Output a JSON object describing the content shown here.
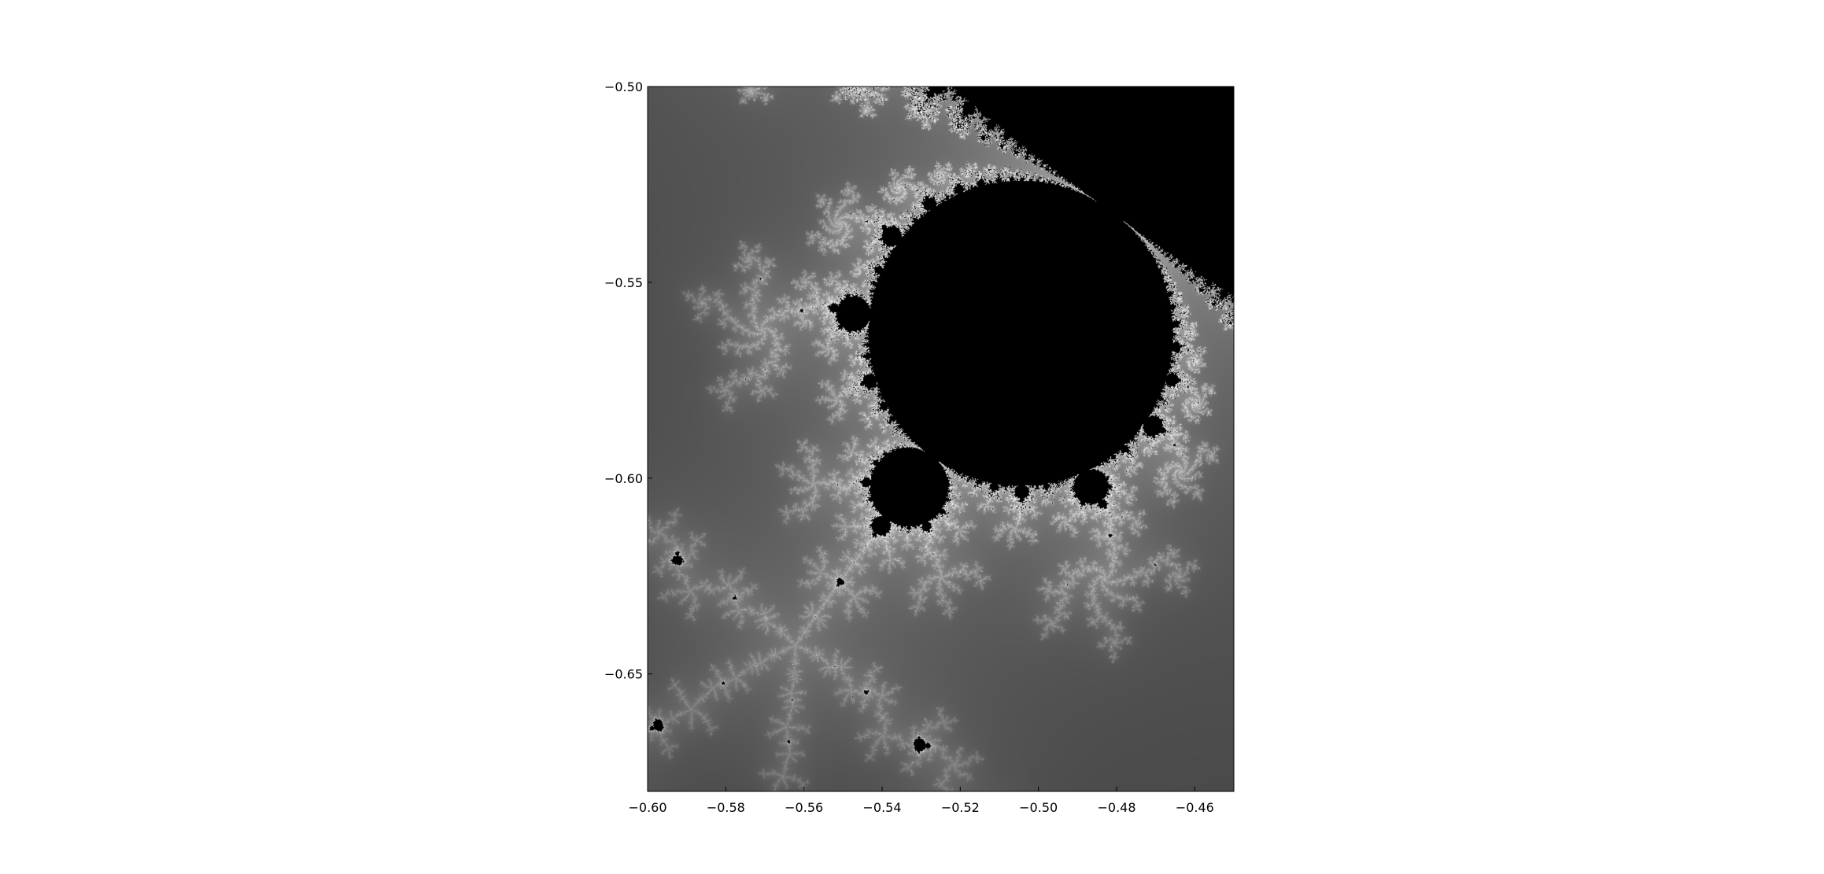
{
  "chart_data": {
    "type": "heatmap",
    "title": "",
    "xlabel": "",
    "ylabel": "",
    "xlim": [
      -0.6,
      -0.45
    ],
    "ylim": [
      -0.68,
      -0.5
    ],
    "x_ticks": [
      {
        "value": -0.6,
        "label": "−0.60"
      },
      {
        "value": -0.58,
        "label": "−0.58"
      },
      {
        "value": -0.56,
        "label": "−0.56"
      },
      {
        "value": -0.54,
        "label": "−0.54"
      },
      {
        "value": -0.52,
        "label": "−0.52"
      },
      {
        "value": -0.5,
        "label": "−0.50"
      },
      {
        "value": -0.48,
        "label": "−0.48"
      },
      {
        "value": -0.46,
        "label": "−0.46"
      }
    ],
    "y_ticks": [
      {
        "value": -0.5,
        "label": "−0.50"
      },
      {
        "value": -0.55,
        "label": "−0.55"
      },
      {
        "value": -0.6,
        "label": "−0.60"
      },
      {
        "value": -0.65,
        "label": "−0.65"
      }
    ],
    "colormap": "gray",
    "grid": false,
    "legend": "none",
    "axis_frame_color": "#000000"
  }
}
